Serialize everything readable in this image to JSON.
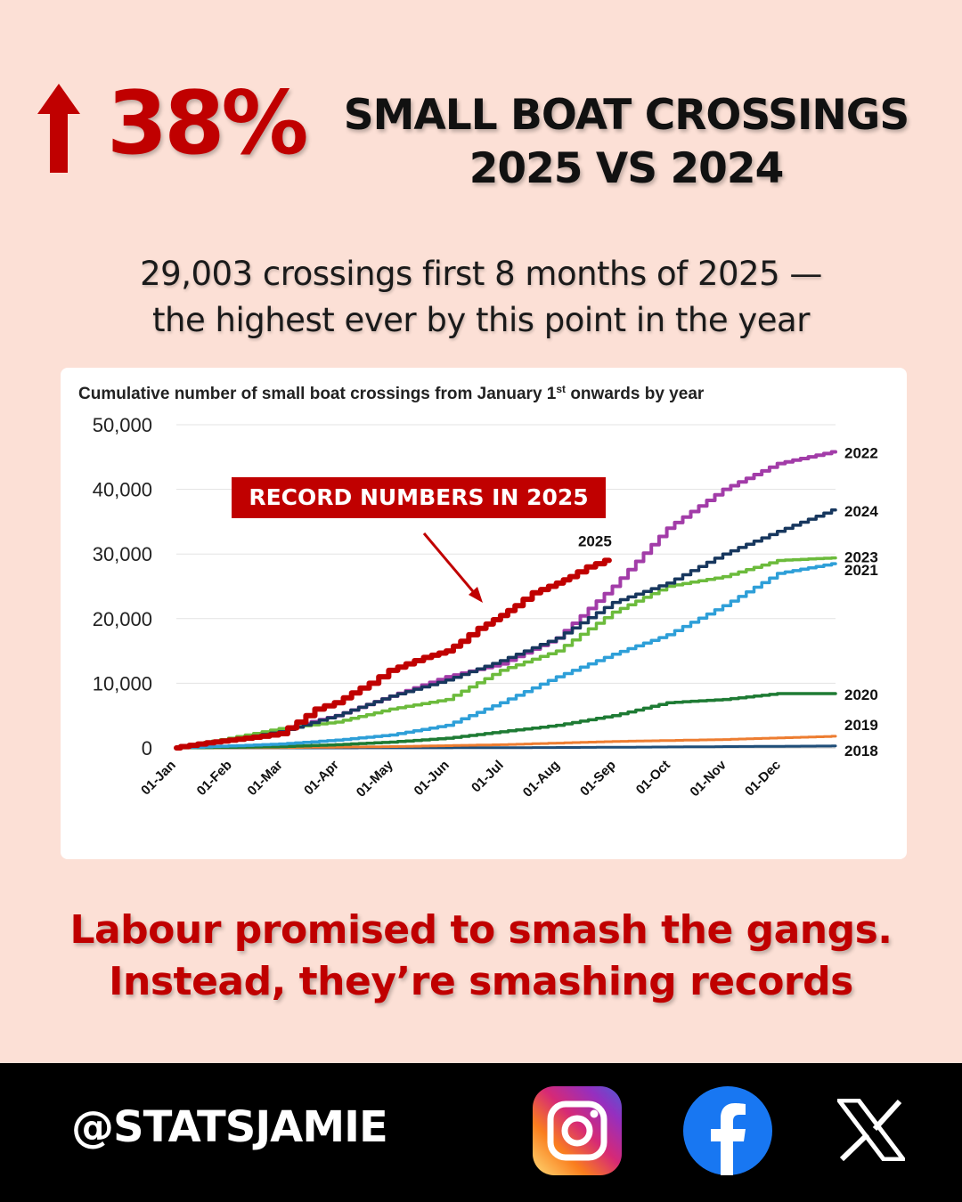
{
  "headline": {
    "change": "38%",
    "title_line1": "SMALL BOAT CROSSINGS",
    "title_line2": "2025 VS 2024"
  },
  "subtitle": {
    "line1": "29,003 crossings first 8 months of 2025 —",
    "line2": "the highest ever by this point in the year"
  },
  "colors": {
    "background": "#fce0d6",
    "accent_red": "#c00000",
    "footer": "#000000"
  },
  "chart_data": {
    "type": "line",
    "title": "Cumulative number of small boat crossings from January 1",
    "title_sup": "st",
    "title_tail": " onwards by year",
    "ylim": [
      0,
      50000
    ],
    "yticks": [
      "0",
      "10,000",
      "20,000",
      "30,000",
      "40,000",
      "50,000"
    ],
    "ytick_values": [
      0,
      10000,
      20000,
      30000,
      40000,
      50000
    ],
    "xlim": [
      1,
      365
    ],
    "xticks": [
      "01-Jan",
      "01-Feb",
      "01-Mar",
      "01-Apr",
      "01-May",
      "01-Jun",
      "01-Jul",
      "01-Aug",
      "01-Sep",
      "01-Oct",
      "01-Nov",
      "01-Dec"
    ],
    "xtick_days": [
      1,
      32,
      60,
      91,
      121,
      152,
      182,
      213,
      244,
      274,
      305,
      335
    ],
    "grid": true,
    "legend": "labels at line ends",
    "annotation": "RECORD NUMBERS IN 2025",
    "series": [
      {
        "name": "2018",
        "color": "#1f4e79",
        "width": 3,
        "x": [
          1,
          60,
          121,
          182,
          244,
          305,
          365
        ],
        "y": [
          0,
          0,
          10,
          30,
          100,
          200,
          300
        ]
      },
      {
        "name": "2019",
        "color": "#ed7d31",
        "width": 3,
        "x": [
          1,
          60,
          121,
          182,
          244,
          305,
          365
        ],
        "y": [
          0,
          50,
          200,
          500,
          1000,
          1300,
          1800
        ]
      },
      {
        "name": "2020",
        "color": "#1e7b34",
        "width": 3.5,
        "x": [
          1,
          60,
          91,
          121,
          152,
          182,
          213,
          244,
          274,
          305,
          335,
          365
        ],
        "y": [
          0,
          200,
          500,
          900,
          1500,
          2500,
          3500,
          5000,
          7000,
          7500,
          8400,
          8400
        ]
      },
      {
        "name": "2021",
        "color": "#2e9fd8",
        "width": 3.5,
        "x": [
          1,
          32,
          60,
          91,
          121,
          152,
          182,
          213,
          244,
          274,
          305,
          335,
          365
        ],
        "y": [
          0,
          300,
          600,
          1200,
          2000,
          3500,
          7000,
          11000,
          14500,
          17500,
          22000,
          27000,
          28500
        ]
      },
      {
        "name": "2022",
        "color": "#a23ca8",
        "width": 4,
        "x": [
          1,
          32,
          60,
          91,
          121,
          152,
          182,
          213,
          244,
          274,
          305,
          335,
          365
        ],
        "y": [
          0,
          1200,
          2800,
          5000,
          8000,
          11000,
          13000,
          17000,
          25000,
          34000,
          40000,
          44000,
          45800
        ]
      },
      {
        "name": "2023",
        "color": "#6cbb3c",
        "width": 3.5,
        "x": [
          1,
          32,
          60,
          91,
          121,
          152,
          182,
          213,
          244,
          274,
          305,
          335,
          365
        ],
        "y": [
          0,
          1500,
          3000,
          4000,
          6000,
          7500,
          12000,
          15000,
          21000,
          25000,
          26500,
          29000,
          29400
        ]
      },
      {
        "name": "2024",
        "color": "#17375e",
        "width": 3.5,
        "x": [
          1,
          32,
          60,
          91,
          121,
          152,
          182,
          213,
          244,
          274,
          305,
          335,
          365
        ],
        "y": [
          0,
          1200,
          2500,
          5000,
          8000,
          10500,
          13500,
          17000,
          22500,
          25500,
          30000,
          33500,
          36800
        ]
      },
      {
        "name": "2025",
        "color": "#c00000",
        "width": 6,
        "x": [
          1,
          20,
          32,
          50,
          60,
          70,
          80,
          91,
          100,
          110,
          121,
          130,
          140,
          152,
          160,
          170,
          182,
          190,
          200,
          213,
          220,
          230,
          240
        ],
        "y": [
          0,
          800,
          1200,
          1800,
          2200,
          4000,
          6000,
          7000,
          8500,
          10000,
          12000,
          13000,
          14000,
          15000,
          16500,
          18500,
          20500,
          22000,
          24000,
          25500,
          26500,
          28000,
          29003
        ]
      }
    ]
  },
  "tagline": {
    "line1": "Labour promised to smash the gangs.",
    "line2": "Instead, they’re smashing records"
  },
  "footer": {
    "handle": "@STATSJAMIE",
    "icons": [
      "instagram-icon",
      "facebook-icon",
      "x-icon"
    ]
  }
}
